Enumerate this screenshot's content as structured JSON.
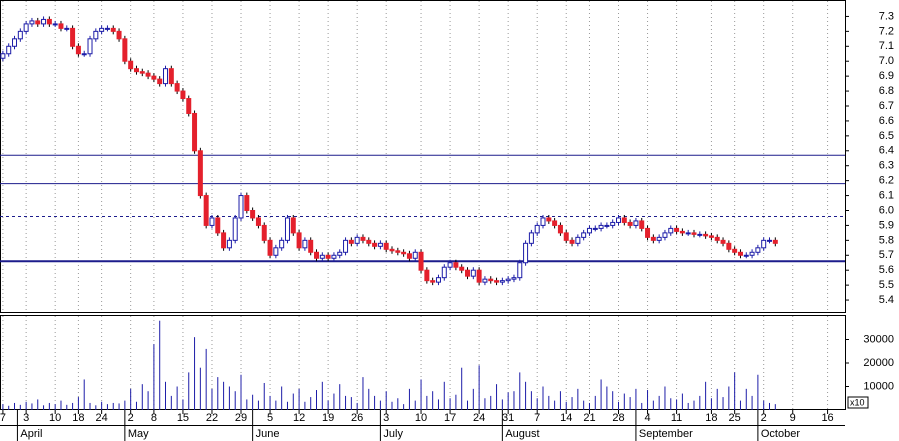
{
  "chart_data": {
    "type": "candlestick",
    "xlim": [
      -0.5,
      145
    ],
    "ylim": [
      5.32,
      7.39
    ],
    "yticks": [
      5.4,
      5.5,
      5.6,
      5.7,
      5.8,
      5.9,
      {
        "value": 6,
        "label": "6.0"
      },
      6.1,
      6.2,
      6.3,
      6.4,
      6.5,
      6.6,
      6.7,
      6.8,
      6.9,
      {
        "value": 7,
        "label": "7.0"
      },
      7.1,
      7.2,
      7.3
    ],
    "xticks": [
      {
        "value": 0,
        "label": "7"
      },
      {
        "value": 4,
        "label": "3"
      },
      {
        "value": 9,
        "label": "10"
      },
      {
        "value": 13,
        "label": "18"
      },
      {
        "value": 17,
        "label": "24"
      },
      {
        "value": 22,
        "label": "2"
      },
      {
        "value": 26,
        "label": "8"
      },
      {
        "value": 31,
        "label": "15"
      },
      {
        "value": 36,
        "label": "22"
      },
      {
        "value": 41,
        "label": "29"
      },
      {
        "value": 46,
        "label": "5"
      },
      {
        "value": 51,
        "label": "12"
      },
      {
        "value": 56,
        "label": "19"
      },
      {
        "value": 61,
        "label": "26"
      },
      {
        "value": 66,
        "label": "3"
      },
      {
        "value": 72,
        "label": "10"
      },
      {
        "value": 77,
        "label": "17"
      },
      {
        "value": 82,
        "label": "24"
      },
      {
        "value": 87,
        "label": "31"
      },
      {
        "value": 92,
        "label": "7"
      },
      {
        "value": 97,
        "label": "14"
      },
      {
        "value": 101,
        "label": "21"
      },
      {
        "value": 106,
        "label": "28"
      },
      {
        "value": 111,
        "label": "4"
      },
      {
        "value": 116,
        "label": "11"
      },
      {
        "value": 122,
        "label": "18"
      },
      {
        "value": 126,
        "label": "25"
      },
      {
        "value": 131,
        "label": "2"
      },
      {
        "value": 136,
        "label": "9"
      },
      {
        "value": 142,
        "label": "16"
      }
    ],
    "month_labels": [
      {
        "value": 2.5,
        "label": "April"
      },
      {
        "value": 21,
        "label": "May"
      },
      {
        "value": 43,
        "label": "June"
      },
      {
        "value": 65,
        "label": "July"
      },
      {
        "value": 86,
        "label": "August"
      },
      {
        "value": 109,
        "label": "September"
      },
      {
        "value": 130,
        "label": "October"
      }
    ],
    "hlines": [
      6.37,
      6.18
    ],
    "thick_hlines": [
      5.66
    ],
    "dashed_hlines": [
      5.96
    ],
    "up_color": "#1c1ca8",
    "down_color": "#e4202c",
    "grid": true,
    "open": [
      7.02,
      7.05,
      7.1,
      7.15,
      7.2,
      7.25,
      7.27,
      7.25,
      7.28,
      7.25,
      7.25,
      7.22,
      7.22,
      7.1,
      7.05,
      7.05,
      7.15,
      7.2,
      7.22,
      7.22,
      7.2,
      7.15,
      7.0,
      6.95,
      6.93,
      6.92,
      6.9,
      6.88,
      6.85,
      6.95,
      6.85,
      6.8,
      6.75,
      6.65,
      6.4,
      6.1,
      5.9,
      5.95,
      5.85,
      5.75,
      5.8,
      5.95,
      6.1,
      6.0,
      5.95,
      5.9,
      5.8,
      5.7,
      5.75,
      5.8,
      5.95,
      5.85,
      5.75,
      5.8,
      5.72,
      5.68,
      5.7,
      5.68,
      5.7,
      5.72,
      5.8,
      5.78,
      5.82,
      5.8,
      5.78,
      5.76,
      5.78,
      5.74,
      5.73,
      5.72,
      5.71,
      5.68,
      5.72,
      5.6,
      5.53,
      5.52,
      5.55,
      5.62,
      5.65,
      5.62,
      5.6,
      5.56,
      5.6,
      5.52,
      5.54,
      5.53,
      5.52,
      5.53,
      5.54,
      5.55,
      5.65,
      5.78,
      5.85,
      5.9,
      5.95,
      5.93,
      5.9,
      5.85,
      5.8,
      5.78,
      5.82,
      5.85,
      5.88,
      5.88,
      5.9,
      5.9,
      5.92,
      5.95,
      5.92,
      5.9,
      5.93,
      5.88,
      5.82,
      5.8,
      5.82,
      5.85,
      5.88,
      5.86,
      5.85,
      5.85,
      5.84,
      5.84,
      5.83,
      5.82,
      5.8,
      5.78,
      5.74,
      5.72,
      5.7,
      5.7,
      5.72,
      5.75,
      5.8,
      5.8
    ],
    "high": [
      7.07,
      7.12,
      7.17,
      7.22,
      7.27,
      7.29,
      7.29,
      7.3,
      7.3,
      7.27,
      7.27,
      7.24,
      7.24,
      7.12,
      7.07,
      7.17,
      7.22,
      7.24,
      7.24,
      7.24,
      7.22,
      7.17,
      7.02,
      6.97,
      6.95,
      6.94,
      6.92,
      6.9,
      6.97,
      6.97,
      6.87,
      6.82,
      6.77,
      6.67,
      6.42,
      6.12,
      5.97,
      5.97,
      5.87,
      5.82,
      5.97,
      6.12,
      6.12,
      6.02,
      5.97,
      5.92,
      5.82,
      5.77,
      5.82,
      5.97,
      5.97,
      5.87,
      5.82,
      5.82,
      5.74,
      5.72,
      5.72,
      5.72,
      5.74,
      5.82,
      5.82,
      5.84,
      5.84,
      5.82,
      5.8,
      5.8,
      5.8,
      5.76,
      5.75,
      5.74,
      5.73,
      5.74,
      5.74,
      5.62,
      5.55,
      5.57,
      5.64,
      5.67,
      5.67,
      5.64,
      5.62,
      5.62,
      5.62,
      5.56,
      5.56,
      5.55,
      5.55,
      5.56,
      5.57,
      5.67,
      5.8,
      5.87,
      5.92,
      5.97,
      5.97,
      5.95,
      5.92,
      5.87,
      5.82,
      5.84,
      5.87,
      5.9,
      5.9,
      5.92,
      5.92,
      5.94,
      5.97,
      5.97,
      5.94,
      5.95,
      5.95,
      5.9,
      5.84,
      5.84,
      5.87,
      5.9,
      5.9,
      5.88,
      5.87,
      5.87,
      5.86,
      5.86,
      5.85,
      5.84,
      5.82,
      5.8,
      5.76,
      5.74,
      5.72,
      5.74,
      5.77,
      5.82,
      5.82,
      5.82
    ],
    "low": [
      7.0,
      7.03,
      7.08,
      7.13,
      7.18,
      7.23,
      7.23,
      7.23,
      7.23,
      7.23,
      7.2,
      7.2,
      7.08,
      7.03,
      7.03,
      7.03,
      7.13,
      7.18,
      7.2,
      7.18,
      7.13,
      6.98,
      6.93,
      6.91,
      6.9,
      6.88,
      6.86,
      6.83,
      6.83,
      6.83,
      6.78,
      6.73,
      6.63,
      6.38,
      6.08,
      5.88,
      5.88,
      5.83,
      5.73,
      5.73,
      5.78,
      5.93,
      5.98,
      5.93,
      5.88,
      5.78,
      5.68,
      5.68,
      5.73,
      5.78,
      5.83,
      5.73,
      5.73,
      5.7,
      5.66,
      5.66,
      5.66,
      5.66,
      5.68,
      5.7,
      5.76,
      5.76,
      5.78,
      5.76,
      5.74,
      5.74,
      5.72,
      5.71,
      5.7,
      5.69,
      5.66,
      5.66,
      5.58,
      5.51,
      5.5,
      5.5,
      5.53,
      5.6,
      5.6,
      5.58,
      5.54,
      5.54,
      5.5,
      5.5,
      5.51,
      5.5,
      5.5,
      5.51,
      5.52,
      5.53,
      5.63,
      5.76,
      5.83,
      5.88,
      5.91,
      5.88,
      5.83,
      5.78,
      5.76,
      5.76,
      5.8,
      5.83,
      5.86,
      5.86,
      5.88,
      5.88,
      5.9,
      5.9,
      5.88,
      5.88,
      5.86,
      5.8,
      5.78,
      5.78,
      5.8,
      5.83,
      5.84,
      5.83,
      5.83,
      5.82,
      5.82,
      5.81,
      5.8,
      5.78,
      5.76,
      5.72,
      5.7,
      5.68,
      5.68,
      5.68,
      5.7,
      5.73,
      5.78,
      5.76
    ],
    "close": [
      7.05,
      7.1,
      7.15,
      7.2,
      7.25,
      7.27,
      7.25,
      7.28,
      7.25,
      7.25,
      7.22,
      7.22,
      7.1,
      7.05,
      7.05,
      7.15,
      7.2,
      7.22,
      7.22,
      7.2,
      7.15,
      7.0,
      6.95,
      6.93,
      6.92,
      6.9,
      6.88,
      6.85,
      6.95,
      6.85,
      6.8,
      6.75,
      6.65,
      6.4,
      6.1,
      5.9,
      5.95,
      5.85,
      5.75,
      5.8,
      5.95,
      6.1,
      6.0,
      5.95,
      5.9,
      5.8,
      5.7,
      5.75,
      5.8,
      5.95,
      5.85,
      5.75,
      5.8,
      5.72,
      5.68,
      5.7,
      5.68,
      5.7,
      5.72,
      5.8,
      5.78,
      5.82,
      5.8,
      5.78,
      5.76,
      5.78,
      5.74,
      5.73,
      5.72,
      5.71,
      5.68,
      5.72,
      5.6,
      5.53,
      5.52,
      5.55,
      5.62,
      5.65,
      5.62,
      5.6,
      5.56,
      5.6,
      5.52,
      5.54,
      5.53,
      5.52,
      5.53,
      5.54,
      5.55,
      5.65,
      5.78,
      5.85,
      5.9,
      5.95,
      5.93,
      5.9,
      5.85,
      5.8,
      5.78,
      5.82,
      5.85,
      5.88,
      5.88,
      5.9,
      5.9,
      5.92,
      5.95,
      5.92,
      5.9,
      5.93,
      5.88,
      5.82,
      5.8,
      5.82,
      5.85,
      5.88,
      5.86,
      5.85,
      5.85,
      5.84,
      5.84,
      5.83,
      5.82,
      5.8,
      5.78,
      5.74,
      5.72,
      5.7,
      5.7,
      5.72,
      5.75,
      5.8,
      5.8,
      5.78
    ],
    "volume": [
      2500,
      1800,
      3000,
      2200,
      3500,
      2800,
      4500,
      2000,
      3000,
      2500,
      4000,
      2200,
      3000,
      5500,
      13000,
      3000,
      2000,
      3500,
      2500,
      3000,
      2800,
      4000,
      9000,
      3500,
      11000,
      8000,
      28000,
      38000,
      12000,
      6000,
      10000,
      4500,
      16000,
      31000,
      18000,
      26000,
      9000,
      14000,
      12000,
      10000,
      8000,
      15000,
      4500,
      6500,
      4000,
      11500,
      6000,
      4000,
      10000,
      3500,
      7000,
      9000,
      3500,
      5500,
      8500,
      12000,
      4000,
      7000,
      11000,
      6000,
      5500,
      3000,
      14000,
      9000,
      6000,
      4000,
      8000,
      3500,
      5000,
      2500,
      9000,
      4000,
      13000,
      6000,
      8000,
      4500,
      12000,
      5000,
      6500,
      18000,
      4000,
      9000,
      19000,
      5000,
      6000,
      11000,
      4500,
      7500,
      8000,
      16000,
      12000,
      8000,
      5000,
      10000,
      6000,
      4000,
      8000,
      3500,
      5500,
      9000,
      4000,
      3000,
      6000,
      13000,
      10000,
      8000,
      3500,
      7000,
      5500,
      9000,
      3000,
      8500,
      4000,
      6000,
      10000,
      5000,
      4500,
      7000,
      3000,
      4000,
      6000,
      12000,
      5000,
      9000,
      5500,
      10000,
      16000,
      4000,
      9000,
      6000,
      15000,
      4000,
      3000,
      2500
    ],
    "volume_color": "#1c1ca8",
    "y2lim": [
      0,
      40000
    ],
    "y2ticks": [
      10000,
      20000,
      30000
    ],
    "y2_unit_label": "x10"
  }
}
